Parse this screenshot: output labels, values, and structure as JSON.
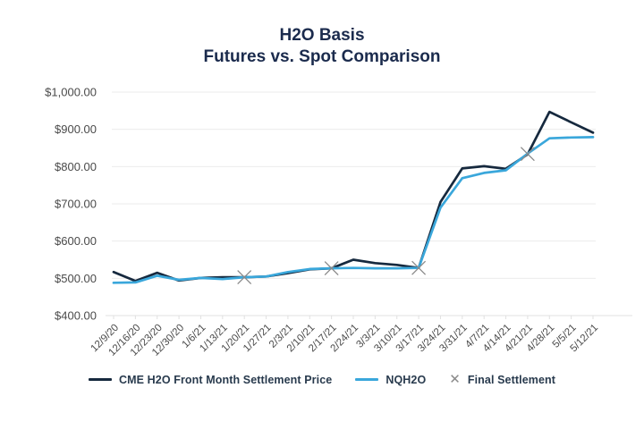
{
  "title": {
    "line1": "H2O Basis",
    "line2": "Futures vs. Spot Comparison"
  },
  "colors": {
    "navy": "#16293E",
    "blue": "#3AA7DB",
    "marker_gray": "#8A8A8A",
    "grid": "#EBEBEB",
    "axis_line": "#E0E0E0",
    "axis_text": "#4A4A4A",
    "title_text": "#1B2B4D"
  },
  "icons": {
    "x_marker": "✕"
  },
  "chart_data": {
    "type": "line",
    "title": "H2O Basis Futures vs. Spot Comparison",
    "categories": [
      "12/9/20",
      "12/16/20",
      "12/23/20",
      "12/30/20",
      "1/6/21",
      "1/13/21",
      "1/20/21",
      "1/27/21",
      "2/3/21",
      "2/10/21",
      "2/17/21",
      "2/24/21",
      "3/3/21",
      "3/10/21",
      "3/17/21",
      "3/24/21",
      "3/31/21",
      "4/7/21",
      "4/14/21",
      "4/21/21",
      "4/28/21",
      "5/5/21",
      "5/12/21"
    ],
    "series": [
      {
        "name": "CME H2O Front Month Settlement Price",
        "color_key": "navy",
        "values": [
          517,
          493,
          515,
          494,
          501,
          503,
          503,
          505,
          514,
          524,
          527,
          550,
          541,
          536,
          528,
          705,
          795,
          801,
          794,
          833,
          947,
          919,
          891
        ]
      },
      {
        "name": "NQH2O",
        "color_key": "blue",
        "values": [
          488,
          489,
          507,
          496,
          501,
          498,
          503,
          505,
          517,
          525,
          527,
          528,
          527,
          527,
          528,
          690,
          769,
          783,
          790,
          835,
          876,
          878,
          879
        ]
      }
    ],
    "markers": {
      "name": "Final Settlement",
      "points": [
        {
          "category": "1/20/21",
          "value": 503
        },
        {
          "category": "2/17/21",
          "value": 527
        },
        {
          "category": "3/17/21",
          "value": 528
        },
        {
          "category": "4/21/21",
          "value": 834
        }
      ]
    },
    "y_ticks": [
      "$1,000.00",
      "$900.00",
      "$800.00",
      "$700.00",
      "$600.00",
      "$500.00",
      "$400.00"
    ],
    "ylim": [
      400,
      1000
    ],
    "xlabel": "",
    "ylabel": "",
    "grid": true,
    "legend_position": "bottom"
  }
}
